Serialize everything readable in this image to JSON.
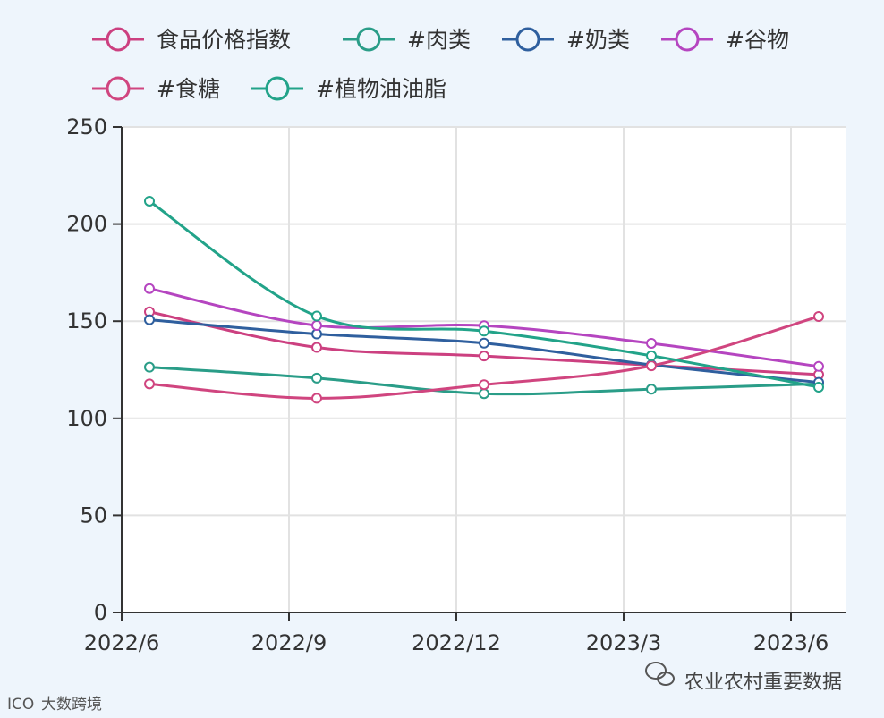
{
  "chart_data": {
    "type": "line",
    "title": "",
    "xlabel": "",
    "ylabel": "",
    "x": [
      "2022/6",
      "2022/9",
      "2022/12",
      "2023/3",
      "2023/6"
    ],
    "x_ticks": [
      "2022/6",
      "2022/9",
      "2022/12",
      "2023/3",
      "2023/6"
    ],
    "y_ticks": [
      0,
      50,
      100,
      150,
      200,
      250
    ],
    "ylim": [
      0,
      250
    ],
    "grid": true,
    "legend": "top",
    "series": [
      {
        "name": "食品价格指数",
        "color": "#cc4080",
        "values": [
          154.8,
          136.5,
          132.1,
          127.3,
          122.5
        ]
      },
      {
        "name": "#肉类",
        "color": "#2a9d88",
        "values": [
          126.3,
          120.7,
          112.7,
          115.0,
          117.7
        ]
      },
      {
        "name": "#奶类",
        "color": "#2f5f9e",
        "values": [
          150.7,
          143.4,
          138.7,
          127.5,
          118.5
        ]
      },
      {
        "name": "#谷物",
        "color": "#b545c0",
        "values": [
          166.8,
          147.8,
          147.7,
          138.6,
          126.7
        ]
      },
      {
        "name": "#食糖",
        "color": "#d0457f",
        "values": [
          117.7,
          110.3,
          117.3,
          127.0,
          152.4
        ]
      },
      {
        "name": "#植物油油脂",
        "color": "#22a389",
        "values": [
          211.8,
          152.6,
          144.9,
          132.2,
          116.0
        ]
      }
    ]
  },
  "watermark": {
    "text": "农业农村重要数据",
    "logo_text": "大数跨境",
    "logo_mark": "ICO"
  }
}
